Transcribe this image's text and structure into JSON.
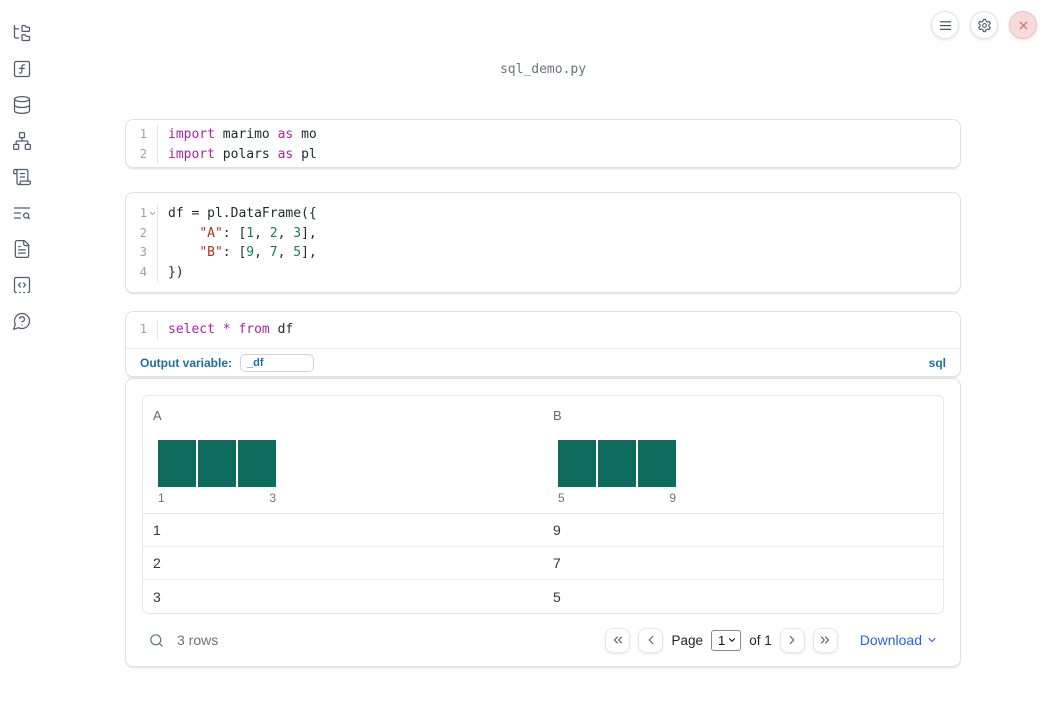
{
  "title": "sql_demo.py",
  "sidebar": {
    "icons": [
      "folder-tree-icon",
      "function-icon",
      "database-icon",
      "dependency-graph-icon",
      "scroll-icon",
      "list-search-icon",
      "document-icon",
      "code-snippet-icon",
      "help-icon"
    ]
  },
  "topbar": {
    "buttons": [
      "menu-icon",
      "settings-gear-icon",
      "close-x-icon"
    ]
  },
  "cells": [
    {
      "name": "imports-cell",
      "language": "python",
      "lines": [
        {
          "n": "1",
          "tokens": [
            [
              "kw",
              "import"
            ],
            [
              "pl",
              " marimo "
            ],
            [
              "kw",
              "as"
            ],
            [
              "pl",
              " mo"
            ]
          ]
        },
        {
          "n": "2",
          "tokens": [
            [
              "kw",
              "import"
            ],
            [
              "pl",
              " polars "
            ],
            [
              "kw",
              "as"
            ],
            [
              "pl",
              " pl"
            ]
          ]
        }
      ]
    },
    {
      "name": "dataframe-cell",
      "language": "python",
      "lines": [
        {
          "n": "1",
          "fold": true,
          "tokens": [
            [
              "pl",
              "df = pl.DataFrame({"
            ]
          ]
        },
        {
          "n": "2",
          "tokens": [
            [
              "pl",
              "    "
            ],
            [
              "str",
              "\"A\""
            ],
            [
              "pl",
              ": ["
            ],
            [
              "num",
              "1"
            ],
            [
              "pl",
              ", "
            ],
            [
              "num",
              "2"
            ],
            [
              "pl",
              ", "
            ],
            [
              "num",
              "3"
            ],
            [
              "pl",
              "],"
            ]
          ]
        },
        {
          "n": "3",
          "tokens": [
            [
              "pl",
              "    "
            ],
            [
              "str",
              "\"B\""
            ],
            [
              "pl",
              ": ["
            ],
            [
              "num",
              "9"
            ],
            [
              "pl",
              ", "
            ],
            [
              "num",
              "7"
            ],
            [
              "pl",
              ", "
            ],
            [
              "num",
              "5"
            ],
            [
              "pl",
              "],"
            ]
          ]
        },
        {
          "n": "4",
          "tokens": [
            [
              "pl",
              "})"
            ]
          ]
        }
      ]
    },
    {
      "name": "sql-cell",
      "language": "sql",
      "lines": [
        {
          "n": "1",
          "tokens": [
            [
              "kw",
              "select"
            ],
            [
              "pl",
              " "
            ],
            [
              "kw",
              "*"
            ],
            [
              "pl",
              " "
            ],
            [
              "kw",
              "from"
            ],
            [
              "pl",
              " df"
            ]
          ]
        }
      ]
    }
  ],
  "sql_panel": {
    "output_variable_label": "Output variable:",
    "output_variable_value": "_df",
    "language_badge": "sql"
  },
  "table": {
    "columns": [
      {
        "label": "A",
        "hist": {
          "bars": [
            1,
            1,
            1
          ],
          "min_label": "1",
          "max_label": "3"
        }
      },
      {
        "label": "B",
        "hist": {
          "bars": [
            1,
            1,
            1
          ],
          "min_label": "5",
          "max_label": "9"
        }
      }
    ],
    "rows": [
      [
        "1",
        "9"
      ],
      [
        "2",
        "7"
      ],
      [
        "3",
        "5"
      ]
    ],
    "footer": {
      "row_count": "3 rows",
      "page_label": "Page",
      "page_value": "1",
      "of_label": "of 1",
      "download_label": "Download"
    }
  },
  "chart_data": [
    {
      "type": "bar",
      "title": "A",
      "values": [
        1,
        1,
        1
      ],
      "x_min_label": "1",
      "x_max_label": "3"
    },
    {
      "type": "bar",
      "title": "B",
      "values": [
        1,
        1,
        1
      ],
      "x_min_label": "5",
      "x_max_label": "9"
    }
  ],
  "colors": {
    "histogram_bar": "#0e6a5c",
    "accent_blue": "#2563eb",
    "sql_label_blue": "#1d6f9e",
    "keyword_purple": "#a626a4",
    "string_red": "#a93226",
    "number_green": "#178049",
    "close_button_red": "#d45757"
  }
}
